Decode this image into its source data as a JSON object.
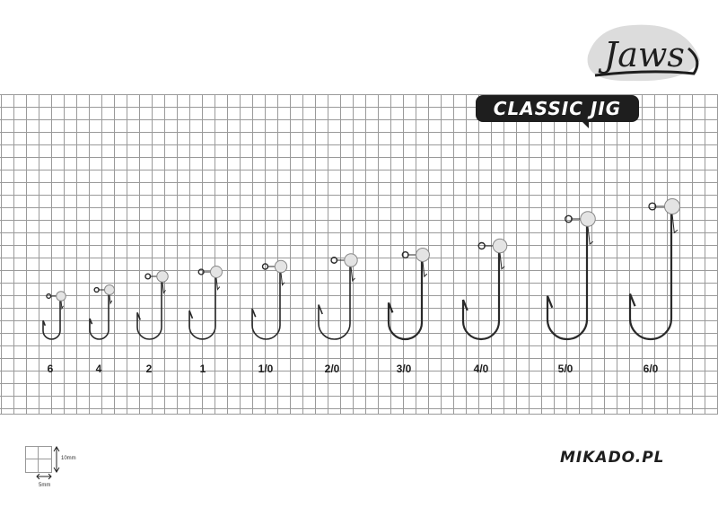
{
  "brand": {
    "logo_text": "Jaws",
    "product_badge": "CLASSIC JIG",
    "website": "MIKADO.PL"
  },
  "scale_legend": {
    "vertical": "10mm",
    "horizontal": "5mm"
  },
  "hook_sizes": [
    "6",
    "4",
    "2",
    "1",
    "1/0",
    "2/0",
    "3/0",
    "4/0",
    "5/0",
    "6/0"
  ],
  "colors": {
    "hook": "#2a2a2a",
    "grid": "#9a9a9a",
    "badge": "#1e1e1e",
    "logo_bg": "#dcdcdc"
  }
}
